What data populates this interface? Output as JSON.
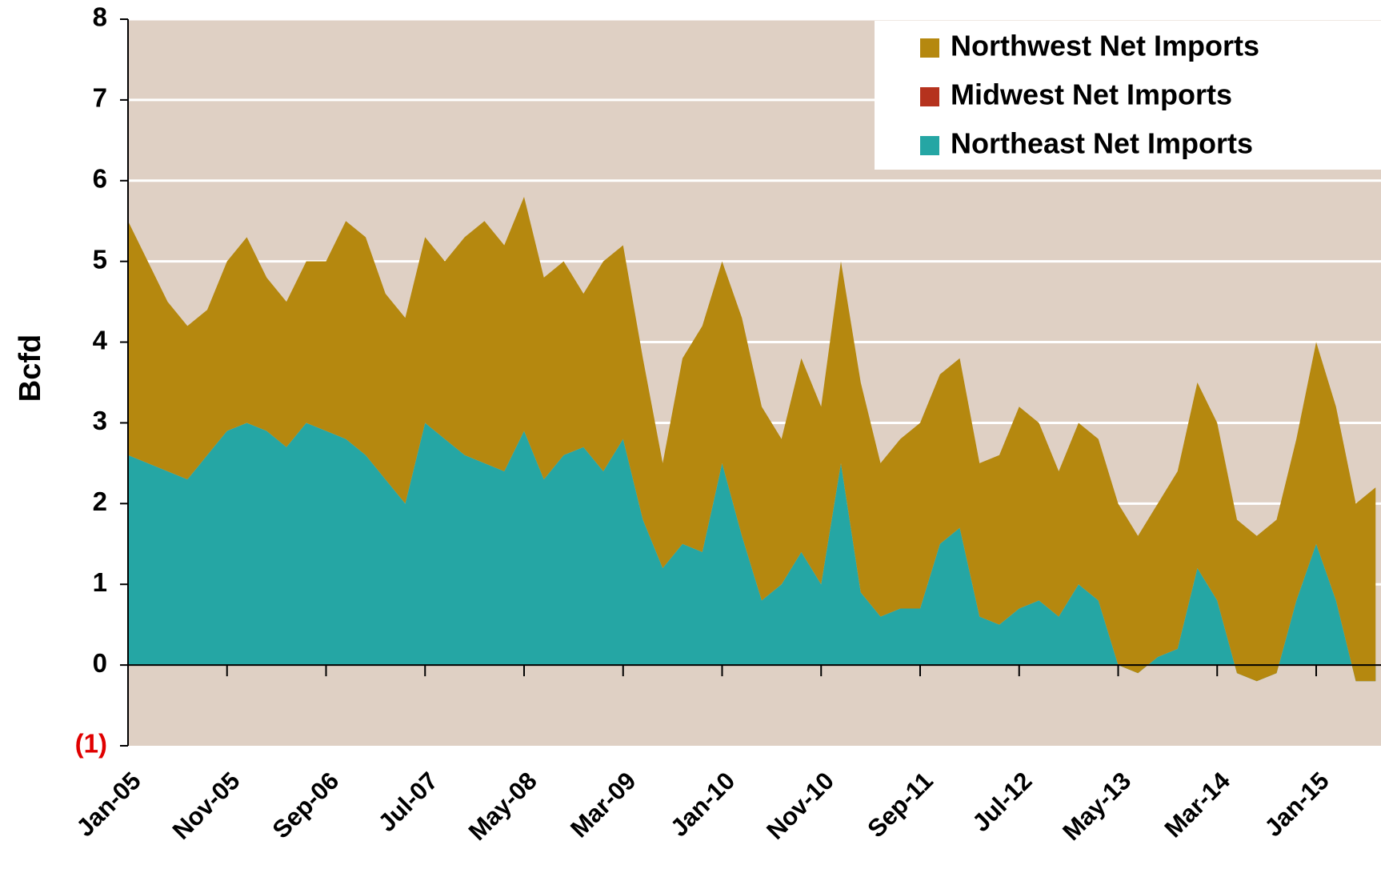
{
  "chart_data": {
    "type": "stacked-area",
    "y_label": "Bcfd",
    "categories": [
      "Jan-05",
      null,
      null,
      null,
      null,
      "Nov-05",
      null,
      null,
      null,
      null,
      "Sep-06",
      null,
      null,
      null,
      null,
      "Jul-07",
      null,
      null,
      null,
      null,
      "May-08",
      null,
      null,
      null,
      null,
      "Mar-09",
      null,
      null,
      null,
      null,
      "Jan-10",
      null,
      null,
      null,
      null,
      "Nov-10",
      null,
      null,
      null,
      null,
      "Sep-11",
      null,
      null,
      null,
      null,
      "Jul-12",
      null,
      null,
      null,
      null,
      "May-13",
      null,
      null,
      null,
      null,
      "Mar-14",
      null,
      null,
      null,
      null,
      "Jan-15",
      null,
      null,
      null
    ],
    "series": [
      {
        "name": "Northwest Net Imports",
        "color": "#b5880f",
        "values": [
          2.9,
          2.5,
          2.1,
          1.9,
          1.8,
          2.1,
          2.3,
          1.9,
          1.8,
          2.0,
          2.1,
          2.7,
          2.7,
          2.3,
          2.3,
          2.3,
          2.2,
          2.7,
          3.0,
          2.8,
          2.9,
          2.5,
          2.4,
          1.9,
          2.6,
          2.4,
          2.0,
          1.3,
          2.3,
          2.8,
          2.5,
          2.7,
          2.4,
          1.8,
          2.4,
          2.2,
          2.5,
          2.6,
          1.9,
          2.1,
          2.3,
          2.1,
          2.1,
          1.9,
          2.1,
          2.5,
          2.2,
          1.8,
          2.0,
          2.0,
          2.0,
          1.7,
          1.9,
          2.2,
          2.3,
          2.2,
          1.9,
          1.8,
          1.9,
          2.0,
          2.5,
          2.4,
          2.2,
          2.4
        ]
      },
      {
        "name": "Midwest Net Imports",
        "color": "#b5321e",
        "values": [
          0,
          0,
          0,
          0,
          0,
          0,
          0,
          0,
          0,
          0,
          0,
          0,
          0,
          0,
          0,
          0,
          0,
          0,
          0,
          0,
          0,
          0,
          0,
          0,
          0,
          0,
          0,
          0,
          0,
          0,
          0,
          0,
          0,
          0,
          0,
          0,
          0,
          0,
          0,
          0,
          0,
          0,
          0,
          0,
          0,
          0,
          0,
          0,
          0,
          0,
          0,
          0,
          0,
          0,
          0,
          0,
          0,
          0,
          0,
          0,
          0,
          0,
          0,
          0
        ]
      },
      {
        "name": "Northeast Net Imports",
        "color": "#25a6a4",
        "values": [
          2.6,
          2.5,
          2.4,
          2.3,
          2.6,
          2.9,
          3.0,
          2.9,
          2.7,
          3.0,
          2.9,
          2.8,
          2.6,
          2.3,
          2.0,
          3.0,
          2.8,
          2.6,
          2.5,
          2.4,
          2.9,
          2.3,
          2.6,
          2.7,
          2.4,
          2.8,
          1.8,
          1.2,
          1.5,
          1.4,
          2.5,
          1.6,
          0.8,
          1.0,
          1.4,
          1.0,
          2.5,
          0.9,
          0.6,
          0.7,
          0.7,
          1.5,
          1.7,
          0.6,
          0.5,
          0.7,
          0.8,
          0.6,
          1.0,
          0.8,
          0.0,
          -0.1,
          0.1,
          0.2,
          1.2,
          0.8,
          -0.1,
          -0.2,
          -0.1,
          0.8,
          1.5,
          0.8,
          -0.2,
          -0.2
        ]
      }
    ],
    "ylim": [
      -1,
      8
    ],
    "yticks": [
      {
        "value": -1,
        "label": "(1)"
      },
      0,
      1,
      2,
      3,
      4,
      5,
      6,
      7,
      8
    ],
    "grid": true,
    "legend": "top-right"
  }
}
